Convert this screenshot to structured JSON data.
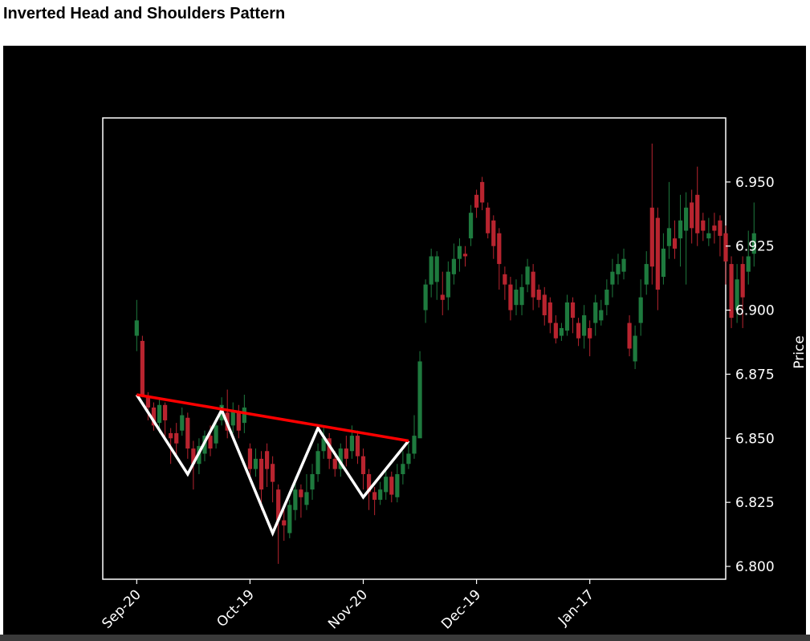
{
  "page": {
    "title": "Inverted Head and Shoulders Pattern"
  },
  "chart_data": {
    "type": "candlestick",
    "title": "",
    "xlabel": "",
    "ylabel": "Price",
    "ylim": [
      6.795,
      6.975
    ],
    "y_ticks": [
      "6.950",
      "6.925",
      "6.900",
      "6.875",
      "6.850",
      "6.825",
      "6.800"
    ],
    "y_tick_values": [
      6.95,
      6.925,
      6.9,
      6.875,
      6.85,
      6.825,
      6.8
    ],
    "x_ticks": [
      "Sep-20",
      "Oct-19",
      "Nov-20",
      "Dec-19",
      "Jan-17"
    ],
    "x_tick_index": [
      0,
      20,
      40,
      60,
      80
    ],
    "x_range": [
      -6,
      104
    ],
    "grid": false,
    "colors": {
      "up": "#1e7a3e",
      "down": "#b8242f",
      "pattern": "#ffffff",
      "neckline": "#ff0000",
      "background": "#000000",
      "axes": "#ffffff"
    },
    "candles": [
      [
        6.89,
        6.896,
        6.904,
        6.884
      ],
      [
        6.888,
        6.867,
        6.89,
        6.866
      ],
      [
        6.866,
        6.862,
        6.868,
        6.857
      ],
      [
        6.862,
        6.855,
        6.864,
        6.853
      ],
      [
        6.856,
        6.863,
        6.866,
        6.852
      ],
      [
        6.863,
        6.857,
        6.864,
        6.849
      ],
      [
        6.852,
        6.85,
        6.854,
        6.84
      ],
      [
        6.852,
        6.848,
        6.856,
        6.842
      ],
      [
        6.853,
        6.859,
        6.862,
        6.851
      ],
      [
        6.858,
        6.846,
        6.86,
        6.842
      ],
      [
        6.846,
        6.84,
        6.849,
        6.83
      ],
      [
        6.84,
        6.847,
        6.85,
        6.836
      ],
      [
        6.844,
        6.851,
        6.853,
        6.841
      ],
      [
        6.851,
        6.846,
        6.855,
        6.843
      ],
      [
        6.848,
        6.855,
        6.858,
        6.846
      ],
      [
        6.857,
        6.863,
        6.866,
        6.855
      ],
      [
        6.86,
        6.853,
        6.869,
        6.85
      ],
      [
        6.855,
        6.861,
        6.864,
        6.852
      ],
      [
        6.86,
        6.853,
        6.863,
        6.85
      ],
      [
        6.856,
        6.862,
        6.867,
        6.852
      ],
      [
        6.846,
        6.838,
        6.848,
        6.833
      ],
      [
        6.838,
        6.842,
        6.846,
        6.835
      ],
      [
        6.842,
        6.83,
        6.845,
        6.822
      ],
      [
        6.845,
        6.838,
        6.848,
        6.831
      ],
      [
        6.84,
        6.833,
        6.843,
        6.825
      ],
      [
        6.83,
        6.818,
        6.832,
        6.801
      ],
      [
        6.818,
        6.816,
        6.822,
        6.81
      ],
      [
        6.813,
        6.824,
        6.826,
        6.811
      ],
      [
        6.822,
        6.83,
        6.835,
        6.818
      ],
      [
        6.83,
        6.827,
        6.832,
        6.819
      ],
      [
        6.824,
        6.829,
        6.836,
        6.822
      ],
      [
        6.83,
        6.836,
        6.84,
        6.826
      ],
      [
        6.836,
        6.845,
        6.848,
        6.833
      ],
      [
        6.845,
        6.85,
        6.855,
        6.842
      ],
      [
        6.85,
        6.842,
        6.852,
        6.838
      ],
      [
        6.842,
        6.838,
        6.845,
        6.835
      ],
      [
        6.838,
        6.846,
        6.848,
        6.835
      ],
      [
        6.846,
        6.842,
        6.851,
        6.839
      ],
      [
        6.845,
        6.851,
        6.855,
        6.842
      ],
      [
        6.851,
        6.843,
        6.853,
        6.84
      ],
      [
        6.843,
        6.836,
        6.846,
        6.83
      ],
      [
        6.836,
        6.829,
        6.838,
        6.822
      ],
      [
        6.829,
        6.826,
        6.831,
        6.82
      ],
      [
        6.826,
        6.83,
        6.833,
        6.824
      ],
      [
        6.829,
        6.835,
        6.838,
        6.826
      ],
      [
        6.835,
        6.828,
        6.837,
        6.825
      ],
      [
        6.827,
        6.836,
        6.84,
        6.825
      ],
      [
        6.836,
        6.84,
        6.845,
        6.832
      ],
      [
        6.84,
        6.844,
        6.848,
        6.838
      ],
      [
        6.844,
        6.851,
        6.859,
        6.842
      ],
      [
        6.85,
        6.88,
        6.884,
        6.869
      ],
      [
        6.9,
        6.91,
        6.912,
        6.895
      ],
      [
        6.91,
        6.921,
        6.924,
        6.905
      ],
      [
        6.911,
        6.921,
        6.923,
        6.904
      ],
      [
        6.906,
        6.904,
        6.915,
        6.898
      ],
      [
        6.905,
        6.915,
        6.919,
        6.9
      ],
      [
        6.914,
        6.92,
        6.926,
        6.91
      ],
      [
        6.92,
        6.925,
        6.928,
        6.915
      ],
      [
        6.922,
        6.921,
        6.925,
        6.917
      ],
      [
        6.928,
        6.938,
        6.941,
        6.925
      ],
      [
        6.945,
        6.94,
        6.947,
        6.936
      ],
      [
        6.95,
        6.942,
        6.952,
        6.939
      ],
      [
        6.94,
        6.93,
        6.942,
        6.928
      ],
      [
        6.935,
        6.925,
        6.937,
        6.92
      ],
      [
        6.93,
        6.918,
        6.932,
        6.908
      ],
      [
        6.914,
        6.91,
        6.917,
        6.904
      ],
      [
        6.91,
        6.9,
        6.913,
        6.896
      ],
      [
        6.902,
        6.908,
        6.912,
        6.898
      ],
      [
        6.902,
        6.909,
        6.914,
        6.898
      ],
      [
        6.91,
        6.917,
        6.92,
        6.907
      ],
      [
        6.915,
        6.905,
        6.918,
        6.9
      ],
      [
        6.908,
        6.904,
        6.91,
        6.901
      ],
      [
        6.906,
        6.898,
        6.909,
        6.894
      ],
      [
        6.903,
        6.895,
        6.905,
        6.891
      ],
      [
        6.895,
        6.889,
        6.898,
        6.887
      ],
      [
        6.89,
        6.893,
        6.895,
        6.888
      ],
      [
        6.892,
        6.903,
        6.906,
        6.89
      ],
      [
        6.903,
        6.897,
        6.905,
        6.891
      ],
      [
        6.895,
        6.889,
        6.897,
        6.886
      ],
      [
        6.89,
        6.898,
        6.902,
        6.885
      ],
      [
        6.893,
        6.889,
        6.896,
        6.882
      ],
      [
        6.895,
        6.903,
        6.906,
        6.89
      ],
      [
        6.896,
        6.9,
        6.904,
        6.894
      ],
      [
        6.902,
        6.908,
        6.912,
        6.898
      ],
      [
        6.91,
        6.915,
        6.92,
        6.905
      ],
      [
        6.914,
        6.918,
        6.922,
        6.91
      ],
      [
        6.915,
        6.92,
        6.924,
        6.912
      ],
      [
        6.895,
        6.885,
        6.898,
        6.882
      ],
      [
        6.88,
        6.89,
        6.894,
        6.877
      ],
      [
        6.895,
        6.905,
        6.912,
        6.89
      ],
      [
        6.91,
        6.918,
        6.923,
        6.906
      ],
      [
        6.94,
        6.917,
        6.965,
        6.91
      ],
      [
        6.936,
        6.908,
        6.94,
        6.9
      ],
      [
        6.913,
        6.924,
        6.93,
        6.91
      ],
      [
        6.925,
        6.932,
        6.95,
        6.92
      ],
      [
        6.928,
        6.924,
        6.935,
        6.92
      ],
      [
        6.928,
        6.935,
        6.945,
        6.917
      ],
      [
        6.931,
        6.94,
        6.946,
        6.91
      ],
      [
        6.942,
        6.932,
        6.947,
        6.926
      ],
      [
        6.945,
        6.93,
        6.956,
        6.925
      ],
      [
        6.935,
        6.931,
        6.938,
        6.927
      ],
      [
        6.928,
        6.93,
        6.936,
        6.925
      ],
      [
        6.933,
        6.931,
        6.938,
        6.926
      ],
      [
        6.935,
        6.929,
        6.937,
        6.921
      ],
      [
        6.93,
        6.919,
        6.933,
        6.91
      ],
      [
        6.918,
        6.897,
        6.921,
        6.893
      ],
      [
        6.9,
        6.912,
        6.918,
        6.895
      ],
      [
        6.918,
        6.905,
        6.921,
        6.893
      ],
      [
        6.915,
        6.921,
        6.931,
        6.91
      ],
      [
        6.922,
        6.93,
        6.942,
        6.917
      ]
    ],
    "pattern_line": {
      "x": [
        0,
        9,
        15,
        24,
        32,
        40,
        48
      ],
      "y": [
        6.867,
        6.836,
        6.861,
        6.813,
        6.854,
        6.827,
        6.849
      ]
    },
    "neckline": {
      "x": [
        0,
        48
      ],
      "y": [
        6.867,
        6.849
      ]
    }
  }
}
